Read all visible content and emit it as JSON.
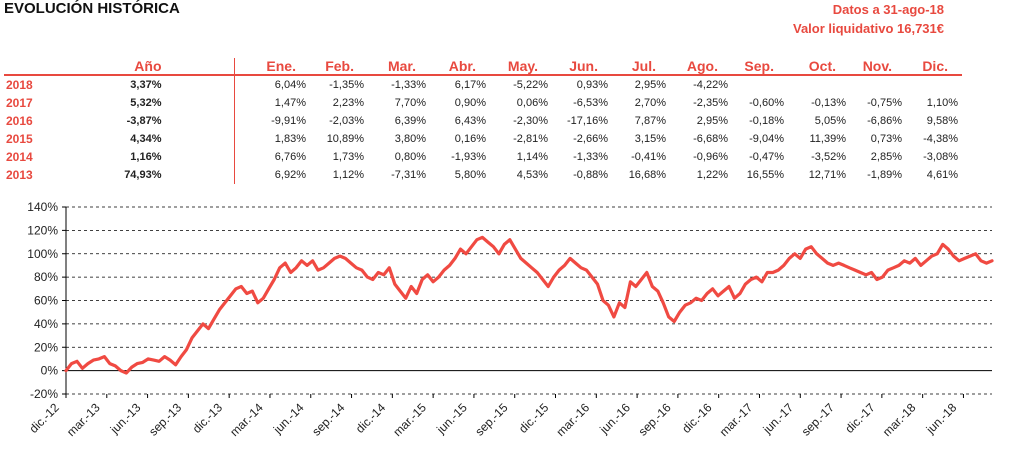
{
  "header": {
    "title": "EVOLUCIÓN HISTÓRICA",
    "date_line": "Datos a 31-ago-18",
    "nav_line": "Valor liquidativo 16,731€"
  },
  "table": {
    "year_col_label": "",
    "annual_col_label": "Año",
    "months": [
      "Ene.",
      "Feb.",
      "Mar.",
      "Abr.",
      "May.",
      "Jun.",
      "Jul.",
      "Ago.",
      "Sep.",
      "Oct.",
      "Nov.",
      "Dic."
    ],
    "rows": [
      {
        "year": "2018",
        "annual": "3,37%",
        "monthly": [
          "6,04%",
          "-1,35%",
          "-1,33%",
          "6,17%",
          "-5,22%",
          "0,93%",
          "2,95%",
          "-4,22%",
          "",
          "",
          "",
          ""
        ]
      },
      {
        "year": "2017",
        "annual": "5,32%",
        "monthly": [
          "1,47%",
          "2,23%",
          "7,70%",
          "0,90%",
          "0,06%",
          "-6,53%",
          "2,70%",
          "-2,35%",
          "-0,60%",
          "-0,13%",
          "-0,75%",
          "1,10%"
        ]
      },
      {
        "year": "2016",
        "annual": "-3,87%",
        "monthly": [
          "-9,91%",
          "-2,03%",
          "6,39%",
          "6,43%",
          "-2,30%",
          "-17,16%",
          "7,87%",
          "2,95%",
          "-0,18%",
          "5,05%",
          "-6,86%",
          "9,58%"
        ]
      },
      {
        "year": "2015",
        "annual": "4,34%",
        "monthly": [
          "1,83%",
          "10,89%",
          "3,80%",
          "0,16%",
          "-2,81%",
          "-2,66%",
          "3,15%",
          "-6,68%",
          "-9,04%",
          "11,39%",
          "0,73%",
          "-4,38%"
        ]
      },
      {
        "year": "2014",
        "annual": "1,16%",
        "monthly": [
          "6,76%",
          "1,73%",
          "0,80%",
          "-1,93%",
          "1,14%",
          "-1,33%",
          "-0,41%",
          "-0,96%",
          "-0,47%",
          "-3,52%",
          "2,85%",
          "-3,08%"
        ]
      },
      {
        "year": "2013",
        "annual": "74,93%",
        "monthly": [
          "6,92%",
          "1,12%",
          "-7,31%",
          "5,80%",
          "4,53%",
          "-0,88%",
          "16,68%",
          "1,22%",
          "16,55%",
          "12,71%",
          "-1,89%",
          "4,61%"
        ]
      }
    ]
  },
  "colors": {
    "accent": "#e8493f",
    "line": "#f04a42",
    "grid": "#000000",
    "text": "#222222"
  },
  "chart_data": {
    "type": "line",
    "title": "",
    "xlabel": "",
    "ylabel": "",
    "ylim": [
      -20,
      140
    ],
    "y_ticks": [
      -20,
      0,
      20,
      40,
      60,
      80,
      100,
      120,
      140
    ],
    "y_tick_labels": [
      "-20%",
      "0%",
      "20%",
      "40%",
      "60%",
      "80%",
      "100%",
      "120%",
      "140%"
    ],
    "x_tick_labels": [
      "dic.-12",
      "mar.-13",
      "jun.-13",
      "sep.-13",
      "dic.-13",
      "mar.-14",
      "jun.-14",
      "sep.-14",
      "dic.-14",
      "mar.-15",
      "jun.-15",
      "sep.-15",
      "dic.-15",
      "mar.-16",
      "jun.-16",
      "sep.-16",
      "dic.-16",
      "mar.-17",
      "jun.-17",
      "sep.-17",
      "dic.-17",
      "mar.-18",
      "jun.-18"
    ],
    "grid": "horizontal dashed",
    "series": [
      {
        "values": [
          0,
          6,
          8,
          2,
          6,
          9,
          10,
          12,
          6,
          4,
          0,
          -2,
          3,
          6,
          7,
          10,
          9,
          8,
          12,
          9,
          5,
          12,
          18,
          28,
          34,
          40,
          36,
          44,
          52,
          58,
          64,
          70,
          72,
          66,
          68,
          58,
          62,
          70,
          78,
          88,
          92,
          84,
          88,
          94,
          90,
          94,
          86,
          88,
          92,
          96,
          98,
          96,
          92,
          88,
          86,
          80,
          78,
          84,
          82,
          88,
          74,
          68,
          62,
          72,
          66,
          78,
          82,
          76,
          80,
          86,
          90,
          96,
          104,
          100,
          106,
          112,
          114,
          110,
          106,
          100,
          108,
          112,
          104,
          96,
          92,
          88,
          84,
          78,
          72,
          80,
          86,
          90,
          96,
          92,
          88,
          86,
          80,
          74,
          60,
          56,
          46,
          58,
          54,
          76,
          72,
          78,
          84,
          72,
          68,
          58,
          46,
          42,
          50,
          56,
          58,
          62,
          60,
          66,
          70,
          64,
          68,
          72,
          62,
          66,
          74,
          78,
          80,
          76,
          84,
          84,
          86,
          90,
          96,
          100,
          96,
          104,
          106,
          100,
          96,
          92,
          90,
          92,
          90,
          88,
          86,
          84,
          82,
          84,
          78,
          80,
          86,
          88,
          90,
          94,
          92,
          96,
          90,
          94,
          98,
          100,
          108,
          104,
          98,
          94,
          96,
          98,
          100,
          94,
          92,
          94
        ]
      }
    ]
  }
}
